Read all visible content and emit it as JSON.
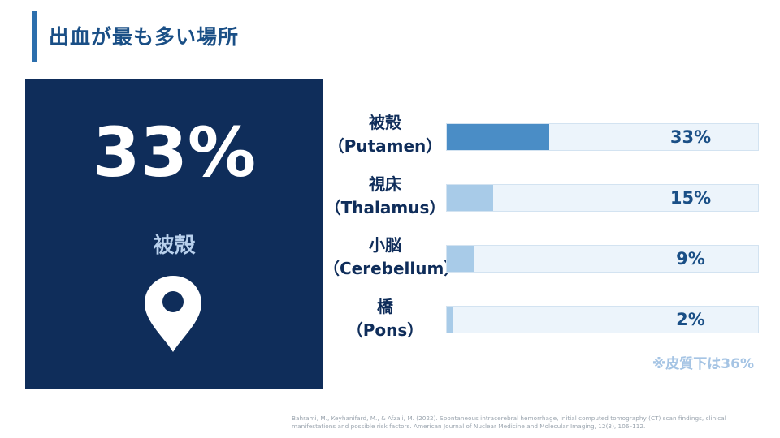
{
  "title": "出血が最も多い場所",
  "highlight": {
    "value": "33%",
    "label": "被殻",
    "icon": "location-pin-icon"
  },
  "chart_data": {
    "type": "bar",
    "orientation": "horizontal",
    "categories": [
      {
        "name": "被殻",
        "sub": "（Putamen）"
      },
      {
        "name": "視床",
        "sub": "（Thalamus）"
      },
      {
        "name": "小脳",
        "sub": "（Cerebellum）"
      },
      {
        "name": "橋",
        "sub": "（Pons）"
      }
    ],
    "values": [
      33,
      15,
      9,
      2
    ],
    "value_labels": [
      "33%",
      "15%",
      "9%",
      "2%"
    ],
    "xlim": [
      0,
      100
    ],
    "colors": {
      "highlight": "#4a8dc6",
      "normal": "#a8cbe8",
      "track": "#ecf4fb"
    }
  },
  "note": "※皮質下は36%",
  "source": "Bahrami, M., Keyhanifard, M., & Afzali, M. (2022). Spontaneous intracerebral hemorrhage, initial computed tomography (CT) scan findings, clinical manifestations and possible risk factors. American Journal of Nuclear Medicine and Molecular Imaging, 12(3), 106–112."
}
